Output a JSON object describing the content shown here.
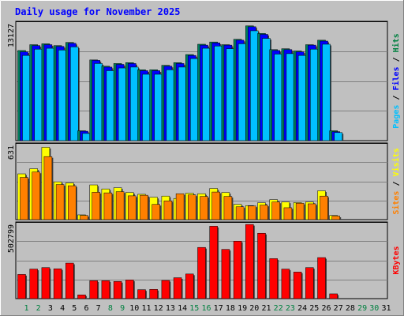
{
  "chart_data": {
    "type": "bar",
    "title": "Daily usage for November 2025",
    "x_tick_labels": [
      "1",
      "2",
      "3",
      "4",
      "5",
      "6",
      "7",
      "8",
      "9",
      "10",
      "11",
      "12",
      "13",
      "14",
      "15",
      "16",
      "17",
      "18",
      "19",
      "20",
      "21",
      "22",
      "23",
      "24",
      "25",
      "26",
      "27",
      "28",
      "29",
      "30",
      "31"
    ],
    "weekend_days": [
      1,
      2,
      8,
      9,
      15,
      16,
      22,
      23,
      29,
      30
    ],
    "panels": [
      {
        "id": "pages-files-hits",
        "max_label": "13127",
        "max_value": 13127,
        "legend": [
          {
            "text": "Pages",
            "color": "#00C0FF"
          },
          {
            "text": "Files",
            "color": "#0000FF"
          },
          {
            "text": "Hits",
            "color": "#008040"
          }
        ],
        "series": [
          {
            "name": "Hits",
            "color": "#00805C",
            "values": [
              10050,
              10700,
              10800,
              10600,
              10950,
              1100,
              9000,
              8300,
              8600,
              8700,
              7900,
              7900,
              8400,
              8700,
              9600,
              10750,
              11000,
              10700,
              11300,
              12800,
              11950,
              10150,
              10250,
              10000,
              10700,
              11200,
              1100,
              0,
              0,
              0,
              0
            ]
          },
          {
            "name": "Files",
            "color": "#0000FF",
            "values": [
              9900,
              10600,
              10700,
              10500,
              10850,
              1050,
              8950,
              8200,
              8500,
              8600,
              7800,
              7800,
              8300,
              8600,
              9500,
              10650,
              10900,
              10650,
              11200,
              12700,
              11850,
              10050,
              10150,
              9900,
              10650,
              11100,
              1000,
              0,
              0,
              0,
              0
            ]
          },
          {
            "name": "Pages",
            "color": "#00C0FF",
            "values": [
              9500,
              10200,
              10300,
              10100,
              10450,
              800,
              8600,
              7800,
              8100,
              8200,
              7400,
              7400,
              7900,
              8200,
              9150,
              10300,
              10550,
              10250,
              10800,
              12250,
              11400,
              9650,
              9700,
              9500,
              10200,
              10750,
              900,
              0,
              0,
              0,
              0
            ]
          }
        ]
      },
      {
        "id": "sites-visits",
        "max_label": "631",
        "max_value": 631,
        "legend": [
          {
            "text": "Sites",
            "color": "#FF8000"
          },
          {
            "text": "Visits",
            "color": "#FFFF00"
          }
        ],
        "series": [
          {
            "name": "Visits",
            "color": "#FFFF00",
            "values": [
              385,
              428,
              608,
              318,
              308,
              40,
              292,
              258,
              268,
              228,
              213,
              188,
              198,
              178,
              222,
              218,
              262,
              228,
              128,
              118,
              142,
              168,
              148,
              143,
              148,
              242,
              35,
              0,
              0,
              0,
              0
            ]
          },
          {
            "name": "Sites",
            "color": "#FF8000",
            "values": [
              355,
              400,
              530,
              295,
              285,
              35,
              230,
              225,
              235,
              200,
              205,
              128,
              158,
              218,
              208,
              195,
              232,
              195,
              108,
              115,
              122,
              148,
              100,
              138,
              133,
              198,
              30,
              0,
              0,
              0,
              0
            ]
          }
        ]
      },
      {
        "id": "kbytes",
        "max_label": "502799",
        "max_value": 502799,
        "legend": [
          {
            "text": "KBytes",
            "color": "#FF0000"
          }
        ],
        "series": [
          {
            "name": "KBytes",
            "color": "#FF0000",
            "values": [
              162000,
              198000,
              208000,
              200000,
              238000,
              25000,
              120000,
              120000,
              115000,
              125000,
              60000,
              62000,
              122000,
              140000,
              165000,
              343000,
              485000,
              330000,
              385000,
              497000,
              438000,
              268000,
              198000,
              178000,
              208000,
              275000,
              32000,
              0,
              0,
              0,
              0
            ]
          }
        ]
      }
    ]
  }
}
